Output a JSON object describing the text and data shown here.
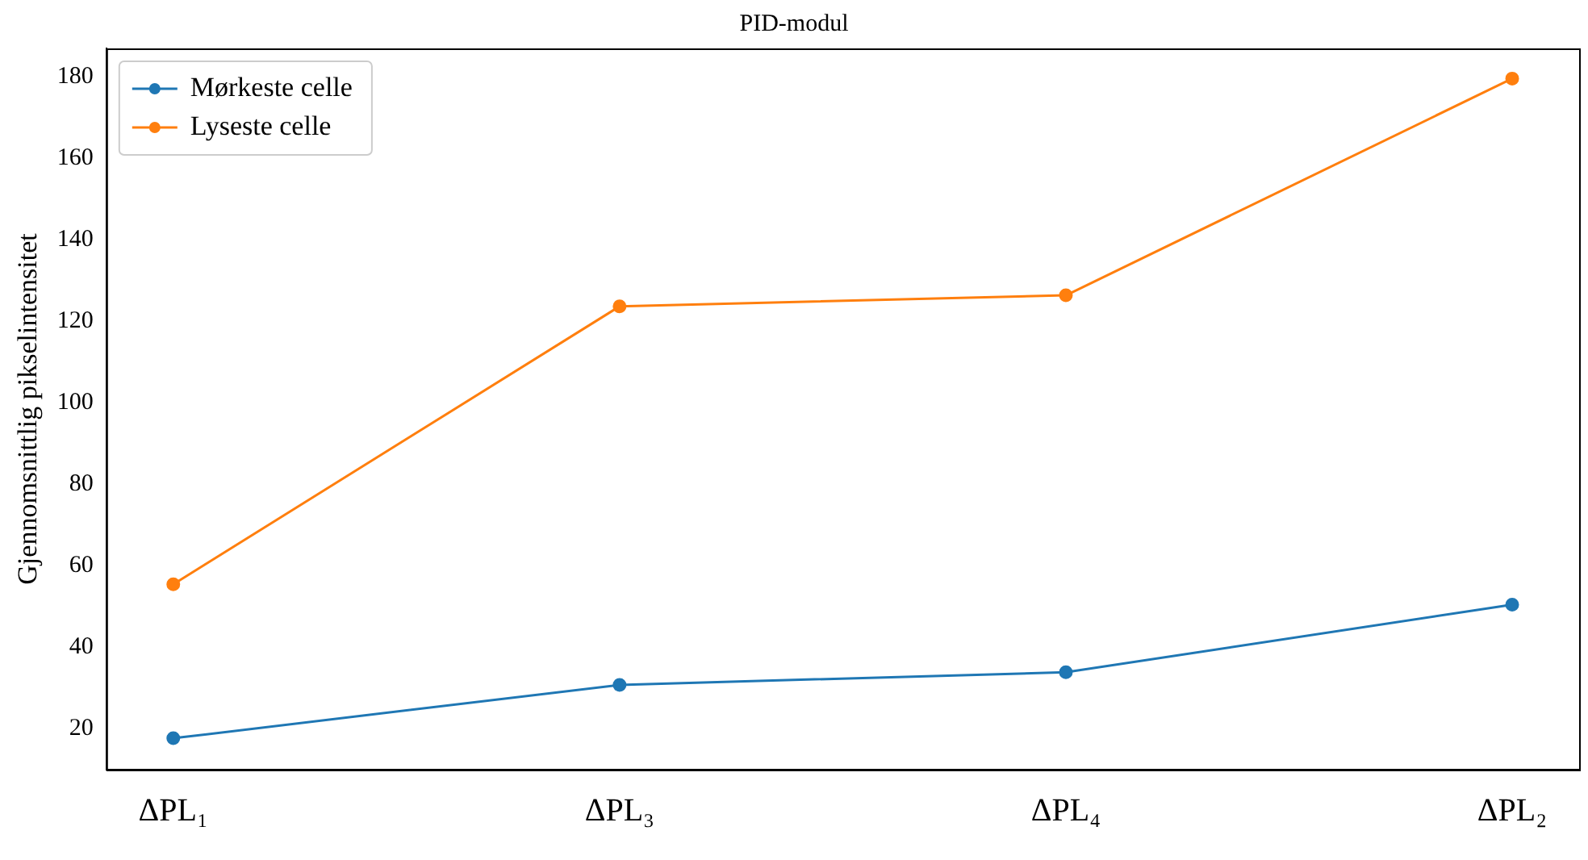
{
  "chart_data": {
    "type": "line",
    "title": "PID-modul",
    "ylabel": "Gjennomsnittlig pikselintensitet",
    "categories": [
      "ΔPL₁",
      "ΔPL₃",
      "ΔPL₄",
      "ΔPL₂"
    ],
    "series": [
      {
        "name": "Mørkeste celle",
        "color": "#1f77b4",
        "values": [
          17.7,
          30.8,
          33.9,
          50.5
        ]
      },
      {
        "name": "Lyseste celle",
        "color": "#ff7f0e",
        "values": [
          55.5,
          123.7,
          126.4,
          179.6
        ]
      }
    ],
    "ylim": [
      10,
      187
    ],
    "yticks": [
      20,
      40,
      60,
      80,
      100,
      120,
      140,
      160,
      180
    ],
    "grid": false,
    "legend": "top left",
    "marker": "circle",
    "line_style": "solid"
  }
}
